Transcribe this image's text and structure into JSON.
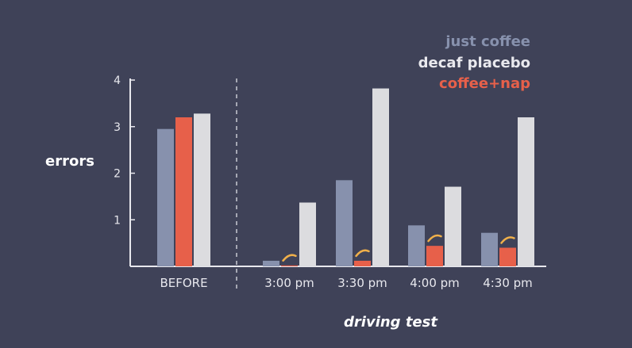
{
  "chart_data": {
    "type": "bar",
    "ylabel": "errors",
    "xlabel": "driving test",
    "ylim": [
      0,
      4
    ],
    "yticks": [
      "1",
      "2",
      "3",
      "4"
    ],
    "categories": [
      "BEFORE",
      "3:00 pm",
      "3:30 pm",
      "4:00 pm",
      "4:30 pm"
    ],
    "series": [
      {
        "name": "just coffee",
        "color": "#8791ad",
        "values": [
          2.95,
          0.12,
          1.85,
          0.88,
          0.72
        ]
      },
      {
        "name": "coffee+nap",
        "color": "#e7604a",
        "values": [
          3.2,
          0.02,
          0.12,
          0.44,
          0.4
        ]
      },
      {
        "name": "decaf placebo",
        "color": "#dcdcdf",
        "values": [
          3.28,
          1.37,
          3.82,
          1.71,
          3.2
        ]
      }
    ],
    "legend": [
      "just coffee",
      "decaf placebo",
      "coffee+nap"
    ],
    "legend_colors": [
      "#8791ad",
      "#e9e9ee",
      "#e7604a"
    ],
    "legend_position": "top-right",
    "divider": "dashed line between BEFORE and 3:00 pm",
    "annotation_color": "#f0b04a",
    "grid": false
  }
}
